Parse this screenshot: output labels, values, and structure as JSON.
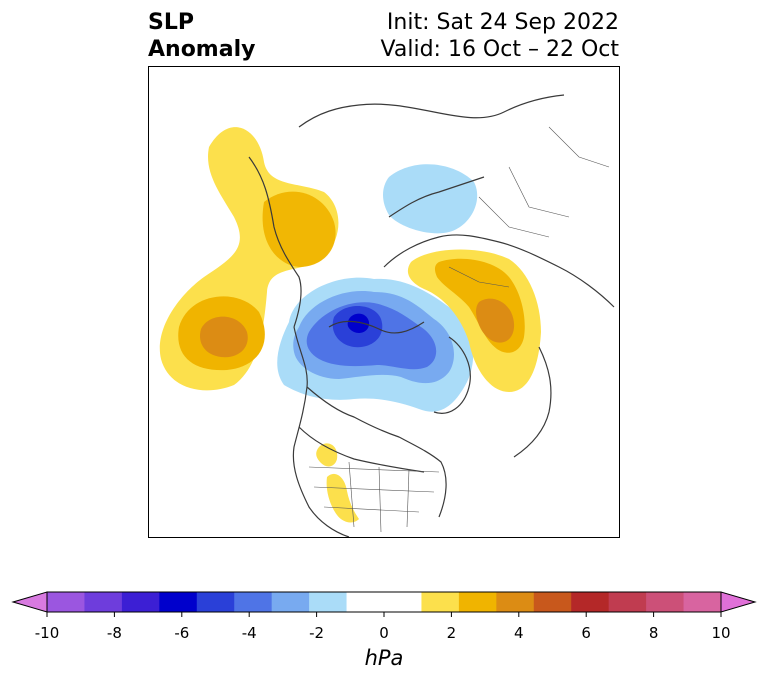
{
  "header": {
    "title_line1": "SLP",
    "title_line2": "Anomaly",
    "init_text": "Init: Sat 24 Sep 2022",
    "valid_text": "Valid: 16 Oct – 22 Oct"
  },
  "colorbar": {
    "unit_label": "hPa",
    "ticks": [
      "-10",
      "-8",
      "-6",
      "-4",
      "-2",
      "0",
      "2",
      "4",
      "6",
      "8",
      "10"
    ],
    "colors": [
      "#9b56e0",
      "#6e3ddc",
      "#3c1fd4",
      "#0000cc",
      "#2a40d8",
      "#4f74e6",
      "#78aaf0",
      "#aadcf8",
      "#ffffff",
      "#ffffff",
      "#fce04c",
      "#f0b400",
      "#dc8c14",
      "#c8581c",
      "#b42828",
      "#c03c50",
      "#cc5078",
      "#d864a0"
    ],
    "left_arrow_color": "#d87ae0",
    "right_arrow_color": "#e070d8"
  },
  "map": {
    "projection": "north-polar stereographic",
    "anomalies": [
      {
        "name": "north-pacific-high",
        "sign": "positive",
        "peak": 4
      },
      {
        "name": "western-north-america-high",
        "sign": "positive",
        "peak": 2
      },
      {
        "name": "arctic-low",
        "sign": "negative",
        "peak": -6
      },
      {
        "name": "scandinavia-low",
        "sign": "negative",
        "peak": -2
      },
      {
        "name": "siberia-high",
        "sign": "positive",
        "peak": 4
      },
      {
        "name": "southwest-us-high",
        "sign": "positive",
        "peak": 2
      }
    ]
  }
}
